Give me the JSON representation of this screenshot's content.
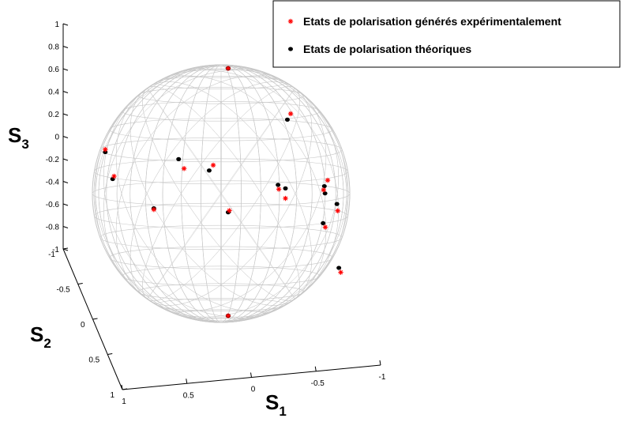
{
  "chart_data": {
    "type": "scatter",
    "projection": "3d-sphere",
    "axes": {
      "x": {
        "label": "S",
        "sub": "1",
        "ticks": [
          "1",
          "0.5",
          "0",
          "-0.5",
          "-1"
        ],
        "range": [
          1,
          -1
        ]
      },
      "y": {
        "label": "S",
        "sub": "2",
        "ticks": [
          "-1",
          "-0.5",
          "0",
          "0.5",
          "1"
        ],
        "range": [
          -1,
          1
        ]
      },
      "z": {
        "label": "S",
        "sub": "3",
        "ticks": [
          "1",
          "0.8",
          "0.6",
          "0.4",
          "0.2",
          "0",
          "-0.2",
          "-0.4",
          "-0.6",
          "-0.8",
          "-1"
        ],
        "range": [
          -1,
          1
        ]
      }
    },
    "sphere": {
      "color": "#c8c8c8",
      "wireframe": true
    },
    "legend": {
      "placement": "top-right",
      "entries": [
        {
          "label": "Etats de polarisation générés expérimentalement",
          "marker": "star",
          "color": "#ff0000"
        },
        {
          "label": "Etats de polarisation théoriques",
          "marker": "dot",
          "color": "#000000"
        }
      ]
    },
    "series": [
      {
        "name": "Etats de polarisation théoriques",
        "marker": "dot",
        "color": "#000000",
        "points": [
          [
            -0.1,
            0.0,
            0.99
          ],
          [
            0.95,
            0.0,
            0.0
          ],
          [
            -0.1,
            0.0,
            -0.99
          ],
          [
            -0.55,
            0.25,
            0.55
          ],
          [
            -0.65,
            0.1,
            0.0
          ],
          [
            0.6,
            0.0,
            0.35
          ],
          [
            0.4,
            0.15,
            0.25
          ],
          [
            0.25,
            0.75,
            0.15
          ],
          [
            0.0,
            0.95,
            0.1
          ],
          [
            -0.05,
            0.9,
            -0.15
          ],
          [
            -0.3,
            0.75,
            0.1
          ],
          [
            -0.4,
            0.8,
            -0.05
          ],
          [
            0.45,
            -0.7,
            0.1
          ],
          [
            -0.35,
            0.85,
            -0.55
          ],
          [
            0.4,
            -0.8,
            0.3
          ],
          [
            0.75,
            0.55,
            0.0
          ]
        ]
      },
      {
        "name": "Etats de polarisation générés expérimentalement",
        "marker": "star",
        "color": "#ff0000",
        "points": [
          [
            -0.1,
            0.0,
            0.99
          ],
          [
            0.95,
            0.0,
            -0.01
          ],
          [
            -0.1,
            0.0,
            -0.99
          ],
          [
            -0.55,
            0.28,
            0.6
          ],
          [
            -0.63,
            0.12,
            -0.03
          ],
          [
            0.6,
            0.05,
            0.28
          ],
          [
            0.42,
            0.2,
            0.3
          ],
          [
            0.25,
            0.75,
            0.07
          ],
          [
            0.02,
            0.95,
            0.13
          ],
          [
            -0.05,
            0.92,
            -0.18
          ],
          [
            -0.3,
            0.78,
            0.15
          ],
          [
            -0.38,
            0.82,
            -0.1
          ],
          [
            0.43,
            -0.7,
            0.12
          ],
          [
            -0.33,
            0.88,
            -0.58
          ],
          [
            0.4,
            -0.8,
            0.32
          ],
          [
            0.78,
            0.58,
            0.02
          ]
        ]
      }
    ]
  }
}
